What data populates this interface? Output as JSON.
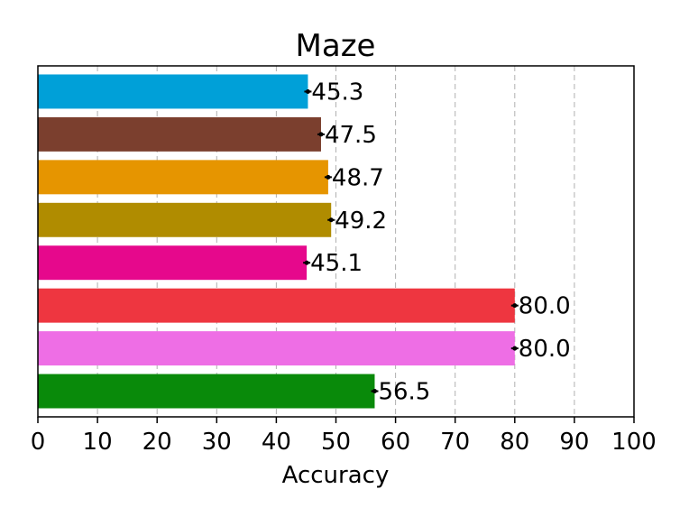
{
  "chart_data": {
    "type": "bar",
    "orientation": "horizontal",
    "title": "Maze",
    "xlabel": "Accuracy",
    "ylabel": "",
    "xlim": [
      0,
      100
    ],
    "xticks": [
      0,
      10,
      20,
      30,
      40,
      50,
      60,
      70,
      80,
      90,
      100
    ],
    "grid": "vertical dashed",
    "values": [
      45.3,
      47.5,
      48.7,
      49.2,
      45.1,
      80.0,
      80.0,
      56.5
    ],
    "labels": [
      "45.3",
      "47.5",
      "48.7",
      "49.2",
      "45.1",
      "80.0",
      "80.0",
      "56.5"
    ],
    "colors": [
      "#00a0d8",
      "#7b3f2e",
      "#e69500",
      "#b08c00",
      "#e6088c",
      "#ee3640",
      "#ee6ee5",
      "#098a0a"
    ]
  }
}
